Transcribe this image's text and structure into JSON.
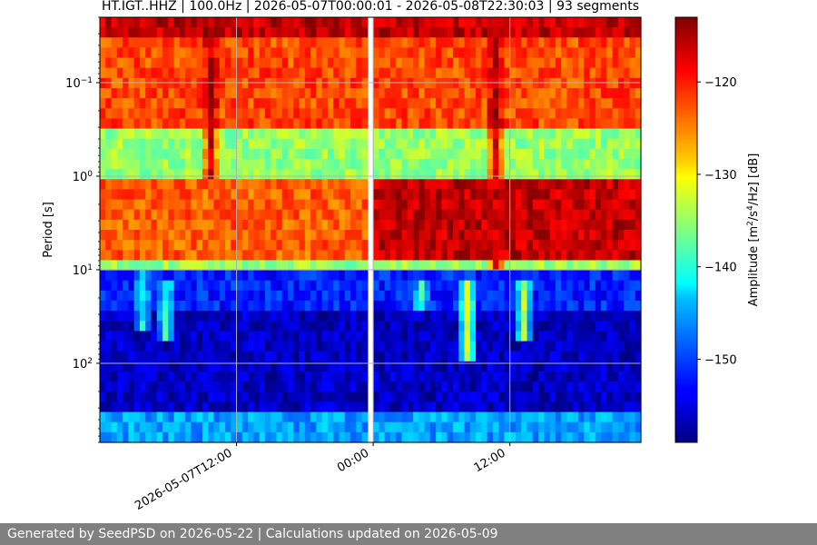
{
  "chart_data": {
    "type": "heatmap",
    "title": "HT.IGT..HHZ | 100.0Hz | 2026-05-07T00:00:01 - 2026-05-08T22:30:03 | 93 segments",
    "ylabel": "Period [s]",
    "y_scale": "log",
    "y_inverted": true,
    "ylim": [
      0.02,
      700
    ],
    "xlim": [
      "2026-05-07T00:00:00",
      "2026-05-08T23:30:00"
    ],
    "x_ticks": [
      {
        "value": "2026-05-07T12:00:00",
        "label": "2026-05-07T12:00"
      },
      {
        "value": "2026-05-08T00:00:00",
        "label": "00:00"
      },
      {
        "value": "2026-05-08T12:00:00",
        "label": "12:00"
      }
    ],
    "y_ticks": [
      {
        "value": 0.1,
        "base": "10",
        "exp": "−1"
      },
      {
        "value": 1,
        "base": "10",
        "exp": "0"
      },
      {
        "value": 10,
        "base": "10",
        "exp": "1"
      },
      {
        "value": 100,
        "base": "10",
        "exp": "2"
      }
    ],
    "grid": true,
    "data_gap": [
      "2026-05-07T23:30:00",
      "2026-05-08T00:00:00"
    ],
    "colormap": "jet",
    "colorbar": {
      "label": "Amplitude [m²/s⁴/Hz] [dB]",
      "label_base": "Amplitude [m",
      "label_s1": "2",
      "label_mid": "/s",
      "label_s2": "4",
      "label_end": "/Hz] [dB]",
      "range": [
        -159,
        -113
      ],
      "ticks": [
        {
          "value": -120,
          "label": "−120"
        },
        {
          "value": -130,
          "label": "−130"
        },
        {
          "value": -140,
          "label": "−140"
        },
        {
          "value": -150,
          "label": "−150"
        }
      ]
    },
    "bands": [
      {
        "period_min": 0.02,
        "period_max": 0.035,
        "db": -116
      },
      {
        "period_min": 0.035,
        "period_max": 0.3,
        "db": -122
      },
      {
        "period_min": 0.3,
        "period_max": 1.1,
        "db": -135
      },
      {
        "period_min": 1.1,
        "period_max": 7,
        "db": -123
      },
      {
        "period_min": 7,
        "period_max": 10,
        "db": -135
      },
      {
        "period_min": 10,
        "period_max": 30,
        "db": -152
      },
      {
        "period_min": 30,
        "period_max": 300,
        "db": -156
      },
      {
        "period_min": 300,
        "period_max": 700,
        "db": -146
      }
    ],
    "day2_adjust": [
      {
        "period_min": 1.1,
        "period_max": 7,
        "db": -116
      }
    ],
    "events": [
      {
        "time": "2026-05-07T03:30:00",
        "period_min": 10,
        "period_max": 40,
        "db": -142
      },
      {
        "time": "2026-05-07T05:30:00",
        "period_min": 12,
        "period_max": 60,
        "db": -140
      },
      {
        "time": "2026-05-07T09:30:00",
        "period_min": 0.035,
        "period_max": 1.2,
        "db": -116
      },
      {
        "time": "2026-05-08T04:00:00",
        "period_min": 12,
        "period_max": 30,
        "db": -140
      },
      {
        "time": "2026-05-08T08:00:00",
        "period_min": 12,
        "period_max": 90,
        "db": -132
      },
      {
        "time": "2026-05-08T10:30:00",
        "period_min": 0.035,
        "period_max": 10,
        "db": -116
      },
      {
        "time": "2026-05-08T13:00:00",
        "period_min": 12,
        "period_max": 60,
        "db": -134
      }
    ]
  },
  "footer": {
    "text": "Generated by SeedPSD on 2026-05-22 | Calculations updated on 2026-05-09"
  }
}
